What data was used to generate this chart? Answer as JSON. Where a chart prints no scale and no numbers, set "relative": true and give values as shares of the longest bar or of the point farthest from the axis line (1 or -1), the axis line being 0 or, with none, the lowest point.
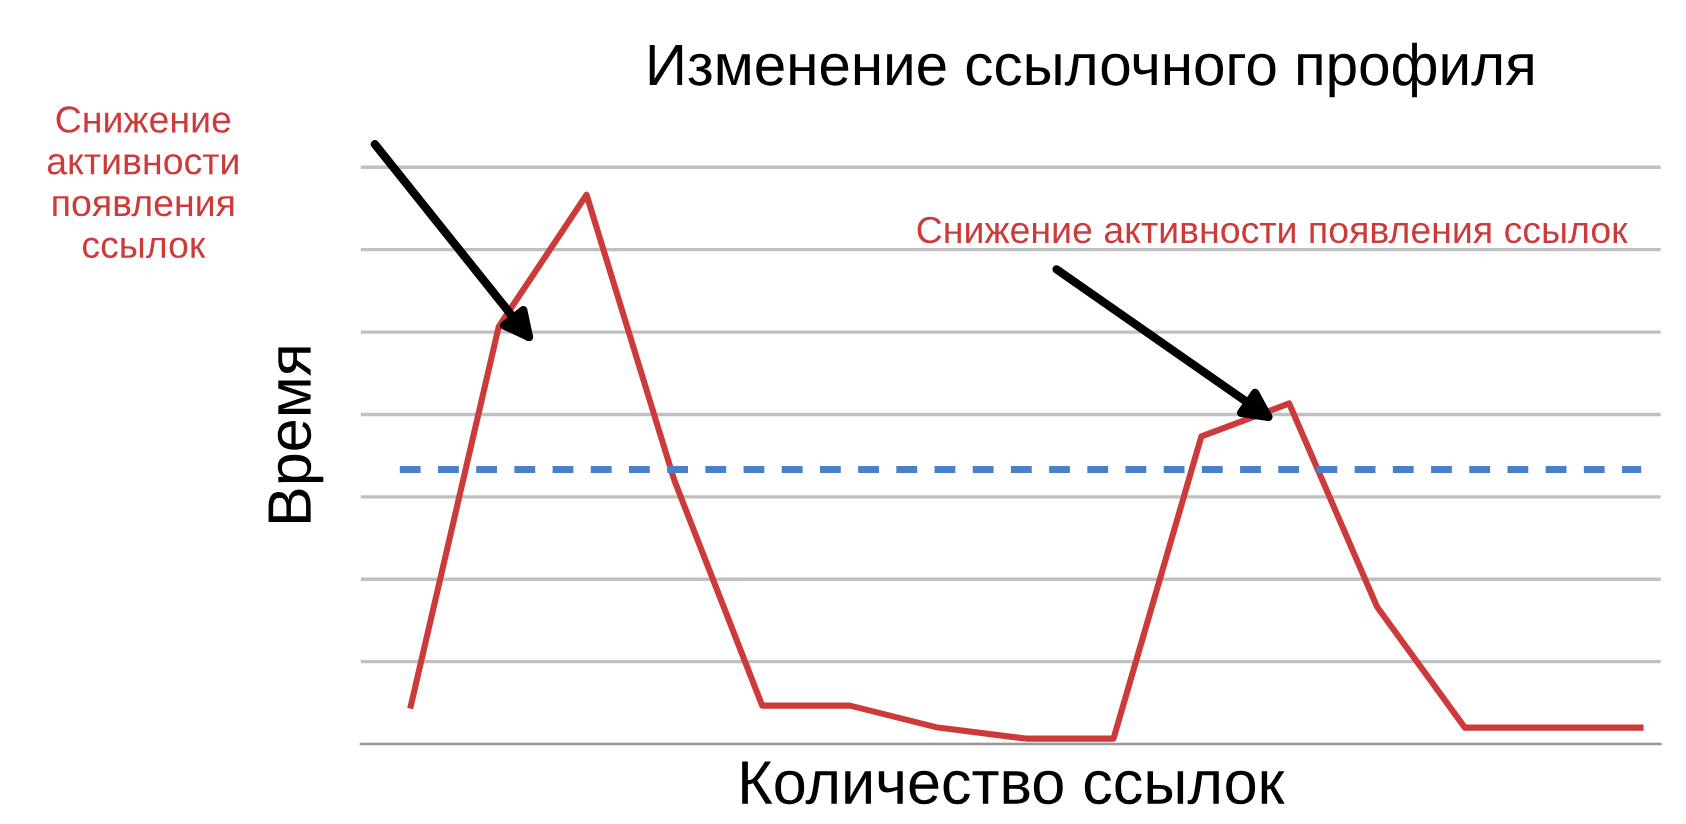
{
  "chart_data": {
    "type": "line",
    "title": "Изменение ссылочного профиля",
    "xlabel": "Количество ссылок",
    "ylabel": "Время",
    "categories": [
      null,
      null,
      null,
      null,
      null,
      null,
      null,
      null,
      null,
      null,
      null,
      null,
      null,
      null,
      null
    ],
    "relative": true,
    "series": [
      {
        "color": "#cc3a3a",
        "values": [
          0.07,
          0.76,
          1,
          0.48,
          0.07,
          0.07,
          0.03,
          0.01,
          0.01,
          0.56,
          0.62,
          0.25,
          0.03,
          0.03,
          0.03
        ]
      }
    ],
    "ref_lines": [
      {
        "axis": "y",
        "value": 0.5,
        "color": "#4a80c8",
        "line_style": "dashed"
      }
    ],
    "annotations": [
      "Снижение\nактивности\nпоявления\nссылок",
      "Снижение активности появления ссылок"
    ],
    "grid": "y",
    "marker": "none",
    "line_style": "solid"
  }
}
